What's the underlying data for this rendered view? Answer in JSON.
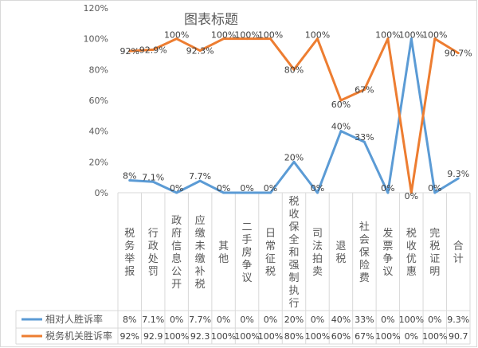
{
  "chart_data": {
    "type": "line",
    "title": "图表标题",
    "categories": [
      "税务举报",
      "行政处罚",
      "政府信息公开",
      "应缴未缴补税",
      "其他",
      "二手房争议",
      "日常征税",
      "税收保全和强制执行",
      "司法拍卖",
      "退税",
      "社会保险费",
      "发票争议",
      "税收优惠",
      "完税证明",
      "合计"
    ],
    "ylim": [
      0,
      120
    ],
    "yticks": [
      "0%",
      "20%",
      "40%",
      "60%",
      "80%",
      "100%",
      "120%"
    ],
    "grid": false,
    "legend": "data-table-bottom",
    "series": [
      {
        "name": "相对人胜诉率",
        "color": "#5b9bd5",
        "values": [
          8,
          7.1,
          0,
          7.7,
          0,
          0,
          0,
          20,
          0,
          40,
          33,
          0,
          100,
          0,
          9.3
        ],
        "labels": [
          "8%",
          "7.1%",
          "0%",
          "7.7%",
          "0%",
          "0%",
          "0%",
          "20%",
          "0%",
          "40%",
          "33%",
          "0%",
          "100%",
          "0%",
          "9.3%"
        ],
        "table": [
          "8%",
          "7.1%",
          "0%",
          "7.7%",
          "0%",
          "0%",
          "0%",
          "20%",
          "0%",
          "40%",
          "33%",
          "0%",
          "100%",
          "0%",
          "9.3%"
        ]
      },
      {
        "name": "税务机关胜诉率",
        "color": "#ed7d31",
        "values": [
          92,
          92.9,
          100,
          92.3,
          100,
          100,
          100,
          80,
          100,
          60,
          67,
          100,
          0,
          100,
          90.7
        ],
        "labels": [
          "92%",
          "92.9%",
          "100%",
          "92.3%",
          "100%",
          "100%",
          "100%",
          "80%",
          "100%",
          "60%",
          "67%",
          "100%",
          "0%",
          "100%",
          "90.7%"
        ],
        "table": [
          "92%",
          "92.9",
          "100%",
          "92.3",
          "100%",
          "100%",
          "100%",
          "80%",
          "100%",
          "60%",
          "67%",
          "100%",
          "0%",
          "100%",
          "90.7"
        ]
      }
    ]
  }
}
